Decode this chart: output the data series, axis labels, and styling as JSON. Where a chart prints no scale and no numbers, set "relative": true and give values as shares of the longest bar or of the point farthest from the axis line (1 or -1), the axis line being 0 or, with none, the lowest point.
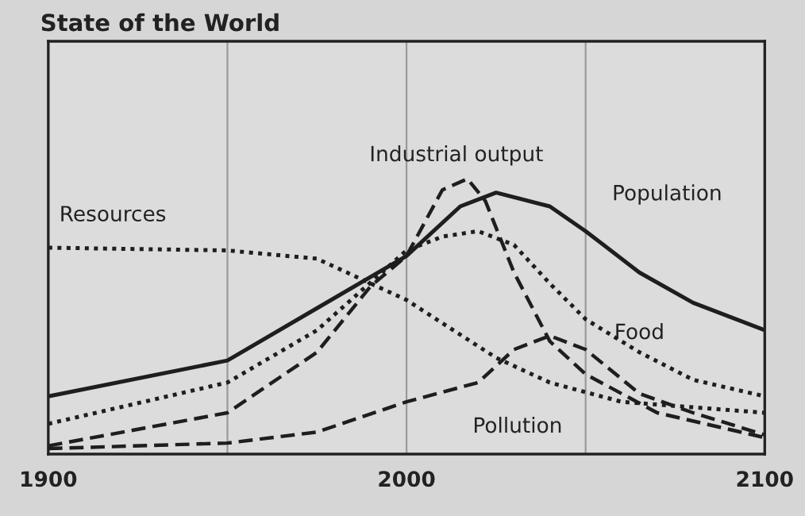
{
  "chart_data": {
    "type": "line",
    "title": "State of the World",
    "relative": true,
    "grid": "x",
    "legend": false,
    "xlim": [
      1900,
      2100
    ],
    "xticks": [
      1900,
      {
        "value": 1950,
        "label": null
      },
      2000,
      {
        "value": 2050,
        "label": null
      },
      2100
    ],
    "series": [
      {
        "name": "Population",
        "color": "#1e1e1e",
        "line_style": "solid",
        "x": [
          1900,
          1950,
          1975,
          2000,
          2015,
          2025,
          2040,
          2050,
          2065,
          2080,
          2100
        ],
        "values": [
          0.21,
          0.34,
          0.53,
          0.72,
          0.9,
          0.95,
          0.9,
          0.81,
          0.66,
          0.55,
          0.45
        ]
      },
      {
        "name": "Industrial output",
        "color": "#1e1e1e",
        "line_style": "dashed",
        "x": [
          1900,
          1950,
          1975,
          1990,
          2000,
          2010,
          2017,
          2022,
          2030,
          2040,
          2050,
          2070,
          2100
        ],
        "values": [
          0.03,
          0.15,
          0.37,
          0.61,
          0.72,
          0.96,
          1,
          0.92,
          0.66,
          0.41,
          0.29,
          0.15,
          0.06
        ]
      },
      {
        "name": "Food",
        "color": "#1e1e1e",
        "line_style": "dotted",
        "x": [
          1900,
          1950,
          1975,
          2000,
          2010,
          2020,
          2030,
          2040,
          2050,
          2065,
          2080,
          2100
        ],
        "values": [
          0.11,
          0.26,
          0.45,
          0.74,
          0.79,
          0.81,
          0.76,
          0.62,
          0.49,
          0.37,
          0.27,
          0.21
        ]
      },
      {
        "name": "Resources",
        "color": "#1e1e1e",
        "line_style": "dotted",
        "x": [
          1900,
          1950,
          1975,
          1990,
          2000,
          2025,
          2040,
          2060,
          2100
        ],
        "values": [
          0.75,
          0.74,
          0.71,
          0.62,
          0.56,
          0.35,
          0.26,
          0.19,
          0.15
        ]
      },
      {
        "name": "Pollution",
        "color": "#1e1e1e",
        "line_style": "dashed",
        "x": [
          1900,
          1950,
          1975,
          2000,
          2020,
          2030,
          2040,
          2050,
          2065,
          2080,
          2100
        ],
        "values": [
          0.02,
          0.04,
          0.08,
          0.19,
          0.26,
          0.38,
          0.43,
          0.38,
          0.22,
          0.15,
          0.07
        ]
      }
    ]
  }
}
